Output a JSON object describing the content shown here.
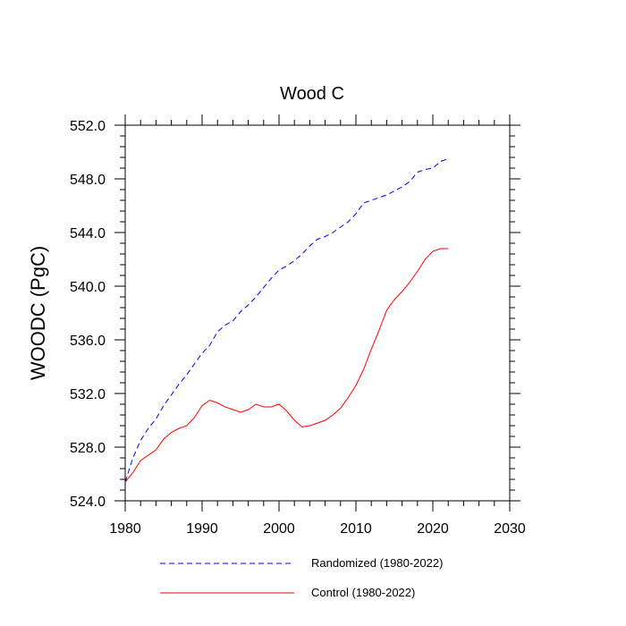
{
  "chart_data": {
    "type": "line",
    "title": "Wood C",
    "xlabel": "",
    "ylabel": "WOODC  (PgC)",
    "xlim": [
      1980,
      2030
    ],
    "ylim": [
      524.0,
      552.0
    ],
    "x_ticks": [
      "1980",
      "1990",
      "2000",
      "2010",
      "2020",
      "2030"
    ],
    "y_ticks": [
      "524.0",
      "528.0",
      "532.0",
      "536.0",
      "540.0",
      "544.0",
      "548.0",
      "552.0"
    ],
    "grid": false,
    "legend_position": "bottom",
    "x": [
      1980,
      1981,
      1982,
      1983,
      1984,
      1985,
      1986,
      1987,
      1988,
      1989,
      1990,
      1991,
      1992,
      1993,
      1994,
      1995,
      1996,
      1997,
      1998,
      1999,
      2000,
      2001,
      2002,
      2003,
      2004,
      2005,
      2006,
      2007,
      2008,
      2009,
      2010,
      2011,
      2012,
      2013,
      2014,
      2015,
      2016,
      2017,
      2018,
      2019,
      2020,
      2021,
      2022
    ],
    "series": [
      {
        "name": "Randomized (1980-2022)",
        "color": "#0000ff",
        "dash": "dashed",
        "values": [
          525.4,
          527.2,
          528.5,
          529.4,
          530.1,
          531.1,
          531.9,
          532.7,
          533.4,
          534.2,
          535.0,
          535.6,
          536.6,
          537.1,
          537.4,
          538.1,
          538.6,
          539.2,
          539.9,
          540.6,
          541.2,
          541.5,
          541.9,
          542.4,
          543.0,
          543.5,
          543.7,
          544.0,
          544.4,
          544.8,
          545.4,
          546.2,
          546.4,
          546.6,
          546.8,
          547.1,
          547.4,
          547.8,
          548.5,
          548.7,
          548.8,
          549.3,
          549.5
        ]
      },
      {
        "name": "Control (1980-2022)",
        "color": "#ff0000",
        "dash": "solid",
        "values": [
          525.4,
          526.1,
          527.0,
          527.4,
          527.8,
          528.6,
          529.1,
          529.4,
          529.6,
          530.2,
          531.1,
          531.5,
          531.3,
          531.0,
          530.8,
          530.6,
          530.8,
          531.2,
          531.0,
          531.0,
          531.2,
          530.7,
          530.0,
          529.5,
          529.6,
          529.8,
          530.0,
          530.4,
          530.9,
          531.7,
          532.6,
          533.8,
          535.3,
          536.7,
          538.2,
          539.0,
          539.6,
          540.3,
          541.1,
          542.0,
          542.6,
          542.8,
          542.8
        ]
      }
    ]
  }
}
